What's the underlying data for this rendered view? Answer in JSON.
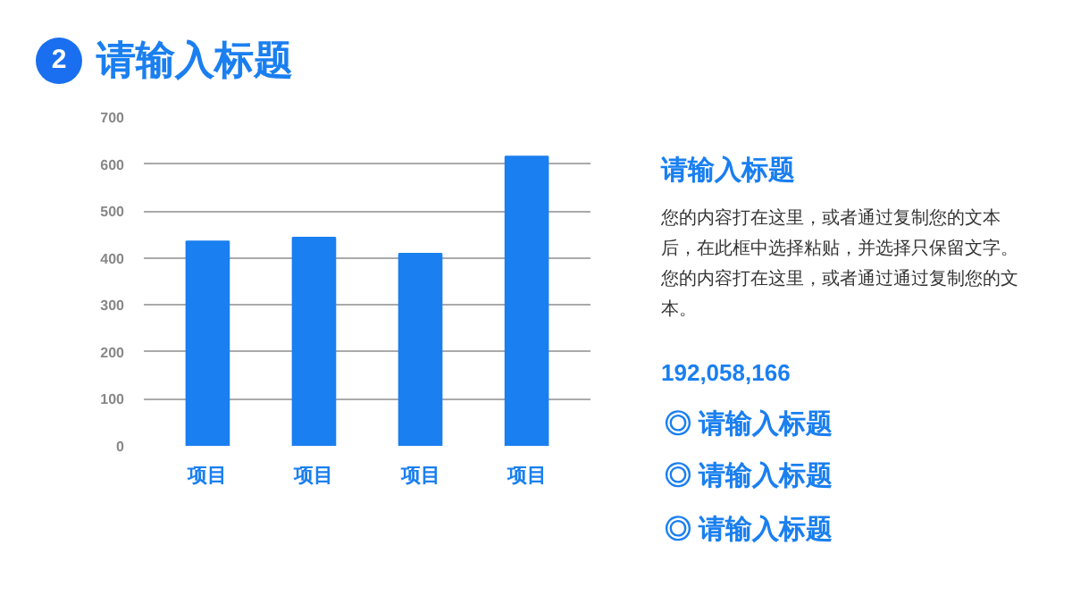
{
  "chart_data": {
    "type": "bar",
    "title": "请输入标题",
    "subtitle": "请输入标题",
    "categories": [
      "项目",
      "项目",
      "项目",
      "项目"
    ],
    "values": [
      435,
      443,
      409,
      616
    ],
    "color": "#1a7ff0",
    "ylim": [
      0,
      700
    ],
    "yticks": [
      0,
      100,
      200,
      300,
      400,
      500,
      600,
      700
    ],
    "grid": "y",
    "annotations": [
      "2",
      "您的内容打在这里，或者通过复制您的文本后，在此框中选择粘贴，并选择只保留文字。您的内容打在这里，或者通过通过复制您的文本。",
      "192,058,166",
      "◎  请输入标题",
      "◎  请输入标题",
      "◎  请输入标题"
    ]
  }
}
